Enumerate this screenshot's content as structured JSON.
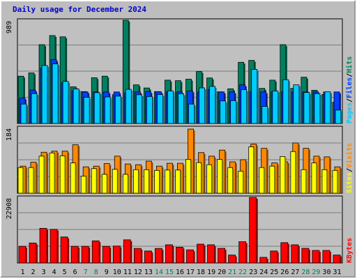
{
  "chart_data": [
    {
      "type": "bar",
      "title": "Daily usage for December 2024",
      "categories": [
        "1",
        "2",
        "3",
        "4",
        "5",
        "6",
        "7",
        "8",
        "9",
        "10",
        "11",
        "12",
        "13",
        "14",
        "15",
        "16",
        "17",
        "18",
        "19",
        "20",
        "21",
        "22",
        "23",
        "24",
        "25",
        "26",
        "27",
        "28",
        "29",
        "30",
        "31"
      ],
      "weekend_days": [
        "7",
        "8",
        "14",
        "15",
        "21",
        "22",
        "28",
        "29"
      ],
      "y_max_label": "989",
      "ylim": [
        0,
        989
      ],
      "ylabel_parts": [
        "Pages",
        "Files",
        "Hits"
      ],
      "series": [
        {
          "name": "Hits",
          "color": "#008060",
          "values": [
            453,
            484,
            755,
            842,
            830,
            351,
            305,
            438,
            453,
            276,
            989,
            370,
            340,
            305,
            415,
            410,
            424,
            497,
            436,
            303,
            332,
            586,
            604,
            336,
            415,
            755,
            336,
            443,
            318,
            278,
            203
          ]
        },
        {
          "name": "Files",
          "color": "#0040ff",
          "values": [
            244,
            320,
            528,
            612,
            388,
            312,
            302,
            302,
            302,
            302,
            292,
            302,
            304,
            304,
            302,
            302,
            312,
            302,
            325,
            302,
            302,
            370,
            302,
            302,
            302,
            302,
            302,
            302,
            302,
            302,
            302
          ]
        },
        {
          "name": "Pages",
          "color": "#00ccff",
          "values": [
            186,
            286,
            555,
            571,
            403,
            331,
            251,
            295,
            254,
            262,
            327,
            275,
            258,
            278,
            312,
            285,
            186,
            341,
            355,
            216,
            219,
            324,
            518,
            163,
            312,
            419,
            370,
            297,
            286,
            303,
            128
          ]
        }
      ]
    },
    {
      "type": "bar",
      "categories": [
        "1",
        "2",
        "3",
        "4",
        "5",
        "6",
        "7",
        "8",
        "9",
        "10",
        "11",
        "12",
        "13",
        "14",
        "15",
        "16",
        "17",
        "18",
        "19",
        "20",
        "21",
        "22",
        "23",
        "24",
        "25",
        "26",
        "27",
        "28",
        "29",
        "30",
        "31"
      ],
      "y_max_label": "184",
      "ylim": [
        0,
        184
      ],
      "ylabel_parts": [
        "Sites",
        "Visits"
      ],
      "series": [
        {
          "name": "Visits",
          "color": "#ff8800",
          "values": [
            76,
            87,
            115,
            118,
            118,
            136,
            74,
            76,
            83,
            104,
            82,
            80,
            90,
            76,
            84,
            84,
            180,
            114,
            104,
            121,
            88,
            94,
            138,
            126,
            85,
            88,
            141,
            126,
            104,
            102,
            74
          ]
        },
        {
          "name": "Sites",
          "color": "#ffff00",
          "values": [
            72,
            72,
            104,
            113,
            105,
            85,
            48,
            69,
            53,
            67,
            53,
            66,
            66,
            64,
            65,
            65,
            95,
            86,
            80,
            95,
            72,
            62,
            130,
            72,
            76,
            103,
            117,
            66,
            85,
            66,
            64
          ]
        }
      ]
    },
    {
      "type": "bar",
      "categories": [
        "1",
        "2",
        "3",
        "4",
        "5",
        "6",
        "7",
        "8",
        "9",
        "10",
        "11",
        "12",
        "13",
        "14",
        "15",
        "16",
        "17",
        "18",
        "19",
        "20",
        "21",
        "22",
        "23",
        "24",
        "25",
        "26",
        "27",
        "28",
        "29",
        "30",
        "31"
      ],
      "y_max_label": "22908",
      "ylim": [
        0,
        22908
      ],
      "ylabel_parts": [
        "KBytes"
      ],
      "series": [
        {
          "name": "KBytes",
          "color": "#ff0000",
          "values": [
            5811,
            6979,
            12100,
            11752,
            9081,
            5811,
            5811,
            7729,
            5811,
            5911,
            8081,
            5080,
            4180,
            5080,
            6352,
            5511,
            4580,
            6579,
            6352,
            5104,
            2771,
            7429,
            22908,
            1961,
            4180,
            7104,
            6352,
            5104,
            4380,
            4380,
            2771
          ]
        }
      ]
    }
  ]
}
